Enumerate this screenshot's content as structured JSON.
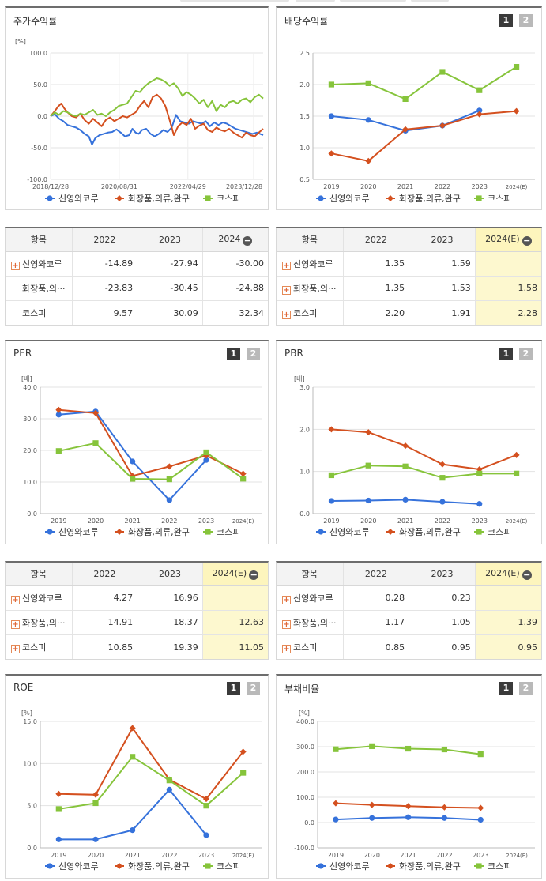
{
  "series_names": [
    "신영와코루",
    "화장품,의류,완구",
    "코스피"
  ],
  "series_short": [
    "신영와코루",
    "화장품,의···",
    "코스피"
  ],
  "colors": {
    "s1": "#3672db",
    "s2": "#d4501f",
    "s3": "#86c43b"
  },
  "pager": {
    "one": "1",
    "two": "2"
  },
  "stock_return": {
    "title": "주가수익률",
    "unit": "[%]",
    "y_ticks": [
      "100.0",
      "50.0",
      "0.0",
      "-50.0",
      "-100.0"
    ],
    "x_ticks": [
      "2018/12/28",
      "2020/08/31",
      "2022/04/29",
      "2023/12/28"
    ],
    "table": {
      "headers": [
        "항목",
        "2022",
        "2023",
        "2024"
      ],
      "rows": [
        {
          "name": "신영와코루",
          "v": [
            "-14.89",
            "-27.94",
            "-30.00"
          ]
        },
        {
          "name": "화장품,의···",
          "v": [
            "-23.83",
            "-30.45",
            "-24.88"
          ]
        },
        {
          "name": "코스피",
          "v": [
            "9.57",
            "30.09",
            "32.34"
          ]
        }
      ]
    }
  },
  "dividend": {
    "title": "배당수익률",
    "table": {
      "headers": [
        "항목",
        "2022",
        "2023",
        "2024(E)"
      ],
      "rows": [
        {
          "name": "신영와코루",
          "v": [
            "1.35",
            "1.59",
            ""
          ]
        },
        {
          "name": "화장품,의···",
          "v": [
            "1.35",
            "1.53",
            "1.58"
          ]
        },
        {
          "name": "코스피",
          "v": [
            "2.20",
            "1.91",
            "2.28"
          ]
        }
      ]
    }
  },
  "per": {
    "title": "PER",
    "table": {
      "headers": [
        "항목",
        "2022",
        "2023",
        "2024(E)"
      ],
      "rows": [
        {
          "name": "신영와코루",
          "v": [
            "4.27",
            "16.96",
            ""
          ]
        },
        {
          "name": "화장품,의···",
          "v": [
            "14.91",
            "18.37",
            "12.63"
          ]
        },
        {
          "name": "코스피",
          "v": [
            "10.85",
            "19.39",
            "11.05"
          ]
        }
      ]
    }
  },
  "pbr": {
    "title": "PBR",
    "table": {
      "headers": [
        "항목",
        "2022",
        "2023",
        "2024(E)"
      ],
      "rows": [
        {
          "name": "신영와코루",
          "v": [
            "0.28",
            "0.23",
            ""
          ]
        },
        {
          "name": "화장품,의···",
          "v": [
            "1.17",
            "1.05",
            "1.39"
          ]
        },
        {
          "name": "코스피",
          "v": [
            "0.85",
            "0.95",
            "0.95"
          ]
        }
      ]
    }
  },
  "roe": {
    "title": "ROE"
  },
  "debt": {
    "title": "부채비율"
  },
  "chart_data": [
    {
      "id": "stock_return",
      "type": "line",
      "ylabel": "[%]",
      "ylim": [
        -100,
        100
      ],
      "y_ticks": [
        100,
        50,
        0,
        -50,
        -100
      ],
      "x_ticks": [
        "2018/12/28",
        "2020/08/31",
        "2022/04/29",
        "2023/12/28"
      ],
      "x_range": [
        0,
        100
      ],
      "x_tick_pos": [
        0,
        32.3,
        64.6,
        95.5
      ],
      "series": [
        {
          "name": "신영와코루",
          "x": [
            0,
            2,
            4,
            6,
            8,
            10,
            12,
            14,
            16,
            18,
            19.5,
            21,
            23,
            25,
            27,
            29,
            31,
            33,
            35,
            37,
            38.5,
            40,
            41.5,
            43,
            45,
            47,
            49,
            51,
            53,
            55,
            57,
            59,
            61,
            63,
            65,
            67,
            69,
            71,
            73,
            75,
            77,
            79,
            81,
            83,
            85,
            87,
            89,
            91,
            93,
            95,
            97,
            100
          ],
          "values": [
            0,
            3,
            -4,
            -8,
            -14,
            -16,
            -18,
            -22,
            -28,
            -32,
            -45,
            -35,
            -30,
            -28,
            -26,
            -25,
            -21,
            -26,
            -32,
            -30,
            -20,
            -26,
            -28,
            -22,
            -20,
            -28,
            -32,
            -28,
            -22,
            -25,
            -18,
            2,
            -8,
            -10,
            -12,
            -8,
            -10,
            -12,
            -8,
            -16,
            -10,
            -14,
            -10,
            -12,
            -16,
            -20,
            -22,
            -24,
            -26,
            -28,
            -26,
            -30
          ]
        },
        {
          "name": "화장품,의류,완구",
          "x": [
            0,
            2,
            3.5,
            5,
            6.5,
            8,
            10,
            12,
            14,
            16,
            18,
            20,
            22,
            24,
            26,
            28,
            30,
            32,
            34,
            36,
            38,
            40,
            42,
            44,
            46,
            48,
            50,
            52,
            54,
            56,
            58,
            60,
            62,
            64,
            66,
            68,
            70,
            72,
            74,
            76,
            78,
            80,
            82,
            84,
            86,
            88,
            90,
            92,
            94,
            96,
            98,
            100
          ],
          "values": [
            0,
            8,
            15,
            20,
            12,
            6,
            0,
            -2,
            4,
            -6,
            -12,
            -4,
            -10,
            -16,
            -6,
            -2,
            -8,
            -4,
            0,
            -2,
            2,
            6,
            16,
            24,
            14,
            30,
            34,
            28,
            16,
            -6,
            -30,
            -16,
            -10,
            -14,
            -4,
            -20,
            -15,
            -12,
            -22,
            -25,
            -18,
            -22,
            -24,
            -20,
            -26,
            -30,
            -34,
            -26,
            -30,
            -32,
            -26,
            -20
          ]
        },
        {
          "name": "코스피",
          "x": [
            0,
            2,
            4,
            6,
            8,
            10,
            12,
            14,
            16,
            18,
            20,
            22,
            24,
            26,
            28,
            30,
            32,
            34,
            36,
            38,
            40,
            42,
            44,
            46,
            48,
            50,
            52,
            54,
            56,
            58,
            60,
            62,
            64,
            66,
            68,
            70,
            72,
            74,
            76,
            78,
            80,
            82,
            84,
            86,
            88,
            90,
            92,
            94,
            96,
            98,
            100
          ],
          "values": [
            0,
            6,
            2,
            8,
            6,
            2,
            0,
            4,
            2,
            6,
            10,
            2,
            4,
            0,
            6,
            10,
            16,
            18,
            20,
            30,
            40,
            38,
            46,
            52,
            56,
            60,
            58,
            54,
            48,
            52,
            44,
            32,
            38,
            34,
            28,
            20,
            26,
            14,
            24,
            8,
            18,
            14,
            22,
            24,
            20,
            26,
            28,
            22,
            30,
            34,
            28
          ]
        }
      ]
    },
    {
      "id": "dividend",
      "type": "line",
      "categories": [
        "2019",
        "2020",
        "2021",
        "2022",
        "2023",
        "2024(E)"
      ],
      "ylim": [
        0.5,
        2.5
      ],
      "y_ticks": [
        2.5,
        2.0,
        1.5,
        1.0,
        0.5
      ],
      "y_tick_labels": [
        "2.5",
        "2.0",
        "1.5",
        "1.0",
        "0.5"
      ],
      "series": [
        {
          "name": "신영와코루",
          "values": [
            1.5,
            1.44,
            1.27,
            1.35,
            1.59,
            null
          ]
        },
        {
          "name": "화장품,의류,완구",
          "values": [
            0.91,
            0.79,
            1.29,
            1.35,
            1.53,
            1.58
          ]
        },
        {
          "name": "코스피",
          "values": [
            2.0,
            2.02,
            1.77,
            2.2,
            1.91,
            2.28
          ]
        }
      ]
    },
    {
      "id": "per",
      "type": "line",
      "ylabel": "[배]",
      "categories": [
        "2019",
        "2020",
        "2021",
        "2022",
        "2023",
        "2024(E)"
      ],
      "ylim": [
        0,
        40
      ],
      "y_ticks": [
        40,
        30,
        20,
        10,
        0
      ],
      "y_tick_labels": [
        "40.0",
        "30.0",
        "20.0",
        "10.0",
        "0.0"
      ],
      "series": [
        {
          "name": "신영와코루",
          "values": [
            31.3,
            32.3,
            16.5,
            4.27,
            16.96,
            null
          ]
        },
        {
          "name": "화장품,의류,완구",
          "values": [
            32.8,
            31.8,
            11.9,
            14.91,
            18.37,
            12.63
          ]
        },
        {
          "name": "코스피",
          "values": [
            19.8,
            22.3,
            11.0,
            10.85,
            19.39,
            11.05
          ]
        }
      ]
    },
    {
      "id": "pbr",
      "type": "line",
      "ylabel": "[배]",
      "categories": [
        "2019",
        "2020",
        "2021",
        "2022",
        "2023",
        "2024(E)"
      ],
      "ylim": [
        0,
        3
      ],
      "y_ticks": [
        3,
        2,
        1,
        0
      ],
      "y_tick_labels": [
        "3.0",
        "2.0",
        "1.0",
        "0.0"
      ],
      "series": [
        {
          "name": "신영와코루",
          "values": [
            0.3,
            0.31,
            0.33,
            0.28,
            0.23,
            null
          ]
        },
        {
          "name": "화장품,의류,완구",
          "values": [
            2.0,
            1.93,
            1.61,
            1.17,
            1.05,
            1.39
          ]
        },
        {
          "name": "코스피",
          "values": [
            0.91,
            1.14,
            1.12,
            0.85,
            0.95,
            0.95
          ]
        }
      ]
    },
    {
      "id": "roe",
      "type": "line",
      "ylabel": "[%]",
      "categories": [
        "2019",
        "2020",
        "2021",
        "2022",
        "2023",
        "2024(E)"
      ],
      "ylim": [
        0,
        15
      ],
      "y_ticks": [
        15,
        10,
        5,
        0
      ],
      "y_tick_labels": [
        "15.0",
        "10.0",
        "5.0",
        "0.0"
      ],
      "series": [
        {
          "name": "신영와코루",
          "values": [
            1.0,
            1.0,
            2.1,
            6.9,
            1.5,
            null
          ]
        },
        {
          "name": "화장품,의류,완구",
          "values": [
            6.4,
            6.3,
            14.2,
            8.1,
            5.8,
            11.4
          ]
        },
        {
          "name": "코스피",
          "values": [
            4.6,
            5.3,
            10.8,
            8.0,
            5.0,
            8.9
          ]
        }
      ]
    },
    {
      "id": "debt",
      "type": "line",
      "ylabel": "[%]",
      "categories": [
        "2019",
        "2020",
        "2021",
        "2022",
        "2023",
        "2024(E)"
      ],
      "ylim": [
        -100,
        400
      ],
      "y_ticks": [
        400,
        300,
        200,
        100,
        0,
        -100
      ],
      "y_tick_labels": [
        "400.0",
        "300.0",
        "200.0",
        "100.0",
        "0.0",
        "-100.0"
      ],
      "series": [
        {
          "name": "신영와코루",
          "values": [
            12,
            18,
            21,
            18,
            11,
            null
          ]
        },
        {
          "name": "화장품,의류,완구",
          "values": [
            76,
            70,
            65,
            60,
            58,
            null
          ]
        },
        {
          "name": "코스피",
          "values": [
            290,
            302,
            292,
            289,
            270,
            null
          ]
        }
      ]
    }
  ]
}
